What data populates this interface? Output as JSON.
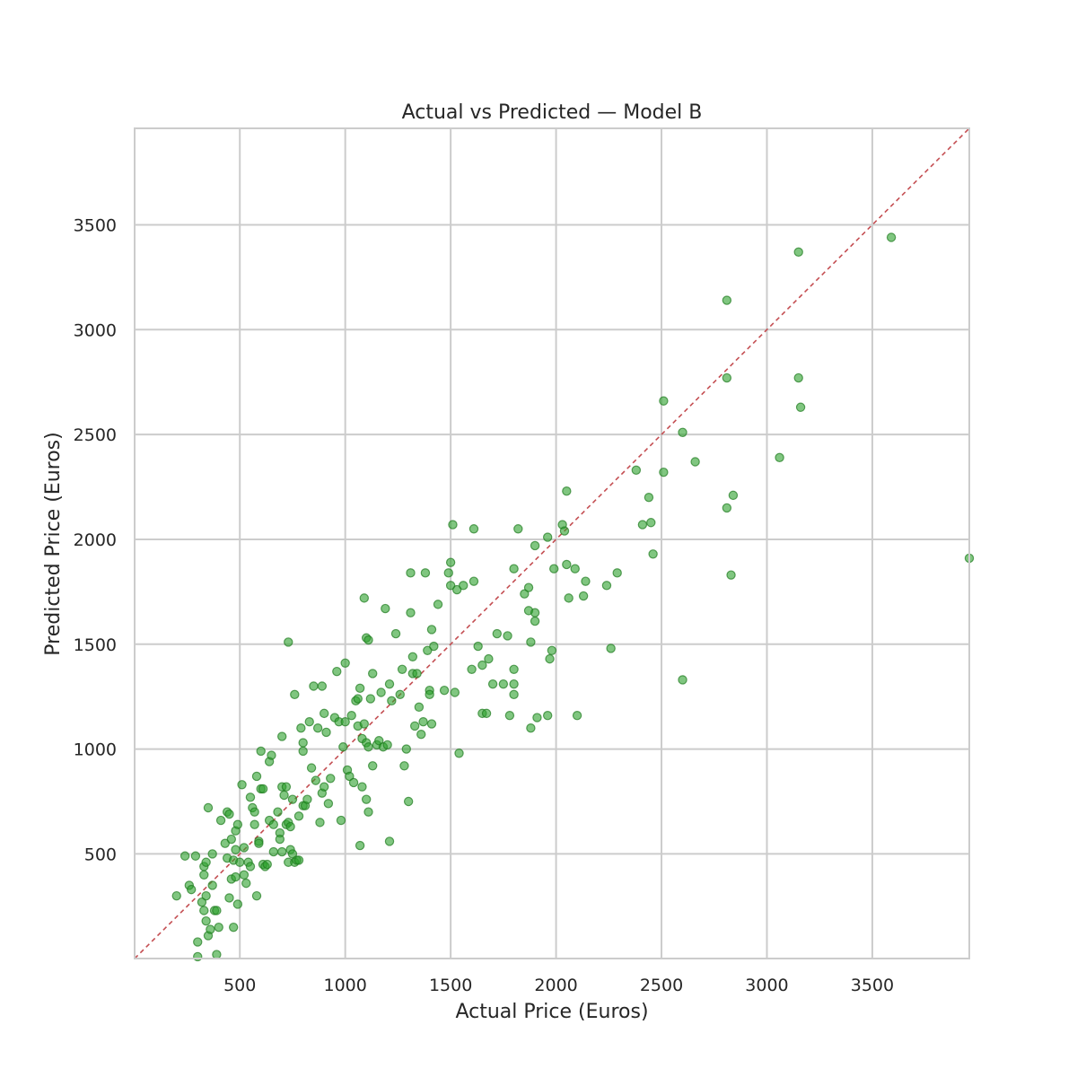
{
  "chart_data": {
    "type": "scatter",
    "title": "Actual vs Predicted — Model B",
    "xlabel": "Actual Price (Euros)",
    "ylabel": "Predicted Price (Euros)",
    "xlim": [
      1,
      3960
    ],
    "ylim": [
      1,
      3960
    ],
    "xticks": [
      500,
      1000,
      1500,
      2000,
      2500,
      3000,
      3500
    ],
    "yticks": [
      500,
      1000,
      1500,
      2000,
      2500,
      3000,
      3500
    ],
    "grid": true,
    "colors": {
      "points": "#2ca02c",
      "reference_line": "#c44e52",
      "grid": "#cccccc",
      "spine": "#cccccc"
    },
    "reference_line": {
      "style": "dashed",
      "from": [
        1,
        1
      ],
      "to": [
        3960,
        3960
      ]
    },
    "points": [
      [
        200,
        300
      ],
      [
        240,
        490
      ],
      [
        260,
        350
      ],
      [
        270,
        330
      ],
      [
        290,
        490
      ],
      [
        300,
        80
      ],
      [
        300,
        10
      ],
      [
        320,
        270
      ],
      [
        330,
        440
      ],
      [
        330,
        230
      ],
      [
        330,
        400
      ],
      [
        340,
        460
      ],
      [
        340,
        300
      ],
      [
        340,
        180
      ],
      [
        350,
        720
      ],
      [
        350,
        110
      ],
      [
        360,
        140
      ],
      [
        370,
        500
      ],
      [
        370,
        350
      ],
      [
        380,
        230
      ],
      [
        390,
        230
      ],
      [
        390,
        20
      ],
      [
        400,
        150
      ],
      [
        410,
        660
      ],
      [
        430,
        550
      ],
      [
        440,
        700
      ],
      [
        440,
        480
      ],
      [
        450,
        290
      ],
      [
        450,
        690
      ],
      [
        460,
        570
      ],
      [
        460,
        380
      ],
      [
        470,
        470
      ],
      [
        470,
        150
      ],
      [
        480,
        610
      ],
      [
        480,
        520
      ],
      [
        480,
        390
      ],
      [
        490,
        640
      ],
      [
        490,
        260
      ],
      [
        500,
        460
      ],
      [
        510,
        830
      ],
      [
        520,
        400
      ],
      [
        520,
        530
      ],
      [
        530,
        360
      ],
      [
        540,
        460
      ],
      [
        550,
        770
      ],
      [
        550,
        440
      ],
      [
        560,
        720
      ],
      [
        570,
        700
      ],
      [
        570,
        640
      ],
      [
        580,
        870
      ],
      [
        580,
        300
      ],
      [
        590,
        560
      ],
      [
        590,
        550
      ],
      [
        600,
        990
      ],
      [
        600,
        810
      ],
      [
        610,
        810
      ],
      [
        610,
        450
      ],
      [
        620,
        440
      ],
      [
        630,
        450
      ],
      [
        640,
        940
      ],
      [
        640,
        660
      ],
      [
        650,
        970
      ],
      [
        660,
        510
      ],
      [
        660,
        640
      ],
      [
        680,
        700
      ],
      [
        690,
        600
      ],
      [
        690,
        570
      ],
      [
        700,
        1060
      ],
      [
        700,
        820
      ],
      [
        700,
        510
      ],
      [
        710,
        780
      ],
      [
        720,
        820
      ],
      [
        720,
        640
      ],
      [
        730,
        1510
      ],
      [
        730,
        650
      ],
      [
        730,
        460
      ],
      [
        740,
        630
      ],
      [
        740,
        520
      ],
      [
        750,
        760
      ],
      [
        750,
        500
      ],
      [
        760,
        1260
      ],
      [
        760,
        460
      ],
      [
        770,
        470
      ],
      [
        780,
        470
      ],
      [
        780,
        680
      ],
      [
        790,
        1100
      ],
      [
        800,
        1030
      ],
      [
        800,
        990
      ],
      [
        800,
        730
      ],
      [
        810,
        730
      ],
      [
        820,
        760
      ],
      [
        830,
        1130
      ],
      [
        840,
        910
      ],
      [
        850,
        1300
      ],
      [
        860,
        850
      ],
      [
        870,
        1100
      ],
      [
        880,
        650
      ],
      [
        890,
        1300
      ],
      [
        890,
        790
      ],
      [
        900,
        1170
      ],
      [
        900,
        820
      ],
      [
        910,
        1080
      ],
      [
        920,
        740
      ],
      [
        930,
        860
      ],
      [
        950,
        1150
      ],
      [
        960,
        1370
      ],
      [
        970,
        1130
      ],
      [
        980,
        660
      ],
      [
        990,
        1010
      ],
      [
        1000,
        1410
      ],
      [
        1000,
        1130
      ],
      [
        1010,
        900
      ],
      [
        1020,
        870
      ],
      [
        1030,
        1160
      ],
      [
        1040,
        840
      ],
      [
        1050,
        1230
      ],
      [
        1060,
        1240
      ],
      [
        1060,
        1110
      ],
      [
        1070,
        1290
      ],
      [
        1070,
        540
      ],
      [
        1080,
        820
      ],
      [
        1080,
        1050
      ],
      [
        1090,
        1720
      ],
      [
        1090,
        1120
      ],
      [
        1100,
        1530
      ],
      [
        1100,
        1030
      ],
      [
        1100,
        760
      ],
      [
        1110,
        1520
      ],
      [
        1110,
        1010
      ],
      [
        1110,
        700
      ],
      [
        1120,
        1240
      ],
      [
        1130,
        1360
      ],
      [
        1130,
        920
      ],
      [
        1150,
        1020
      ],
      [
        1160,
        1040
      ],
      [
        1170,
        1270
      ],
      [
        1180,
        1010
      ],
      [
        1190,
        1670
      ],
      [
        1200,
        1020
      ],
      [
        1210,
        1310
      ],
      [
        1210,
        560
      ],
      [
        1220,
        1230
      ],
      [
        1240,
        1550
      ],
      [
        1260,
        1260
      ],
      [
        1270,
        1380
      ],
      [
        1280,
        920
      ],
      [
        1290,
        1000
      ],
      [
        1300,
        750
      ],
      [
        1310,
        1840
      ],
      [
        1310,
        1650
      ],
      [
        1320,
        1440
      ],
      [
        1320,
        1360
      ],
      [
        1330,
        1110
      ],
      [
        1340,
        1360
      ],
      [
        1350,
        1200
      ],
      [
        1360,
        1070
      ],
      [
        1370,
        1130
      ],
      [
        1380,
        1840
      ],
      [
        1390,
        1470
      ],
      [
        1400,
        1280
      ],
      [
        1400,
        1260
      ],
      [
        1410,
        1570
      ],
      [
        1410,
        1120
      ],
      [
        1420,
        1490
      ],
      [
        1440,
        1690
      ],
      [
        1470,
        1280
      ],
      [
        1490,
        1840
      ],
      [
        1500,
        1890
      ],
      [
        1500,
        1780
      ],
      [
        1510,
        2070
      ],
      [
        1520,
        1270
      ],
      [
        1530,
        1760
      ],
      [
        1540,
        980
      ],
      [
        1560,
        1780
      ],
      [
        1600,
        1380
      ],
      [
        1610,
        2050
      ],
      [
        1610,
        1800
      ],
      [
        1630,
        1490
      ],
      [
        1650,
        1400
      ],
      [
        1650,
        1170
      ],
      [
        1670,
        1170
      ],
      [
        1680,
        1430
      ],
      [
        1700,
        1310
      ],
      [
        1720,
        1550
      ],
      [
        1750,
        1310
      ],
      [
        1770,
        1540
      ],
      [
        1780,
        1160
      ],
      [
        1800,
        1860
      ],
      [
        1800,
        1380
      ],
      [
        1800,
        1310
      ],
      [
        1800,
        1260
      ],
      [
        1820,
        2050
      ],
      [
        1850,
        1740
      ],
      [
        1870,
        1770
      ],
      [
        1870,
        1660
      ],
      [
        1880,
        1510
      ],
      [
        1880,
        1100
      ],
      [
        1900,
        1970
      ],
      [
        1900,
        1610
      ],
      [
        1900,
        1650
      ],
      [
        1910,
        1150
      ],
      [
        1960,
        2010
      ],
      [
        1960,
        1160
      ],
      [
        1970,
        1430
      ],
      [
        1980,
        1470
      ],
      [
        1990,
        1860
      ],
      [
        2030,
        2070
      ],
      [
        2040,
        2040
      ],
      [
        2050,
        2230
      ],
      [
        2050,
        1880
      ],
      [
        2060,
        1720
      ],
      [
        2090,
        1860
      ],
      [
        2100,
        1160
      ],
      [
        2130,
        1730
      ],
      [
        2140,
        1800
      ],
      [
        2240,
        1780
      ],
      [
        2260,
        1480
      ],
      [
        2290,
        1840
      ],
      [
        2380,
        2330
      ],
      [
        2410,
        2070
      ],
      [
        2440,
        2200
      ],
      [
        2450,
        2080
      ],
      [
        2460,
        1930
      ],
      [
        2510,
        2660
      ],
      [
        2510,
        2320
      ],
      [
        2600,
        2510
      ],
      [
        2600,
        1330
      ],
      [
        2660,
        2370
      ],
      [
        2810,
        3140
      ],
      [
        2810,
        2770
      ],
      [
        2810,
        2150
      ],
      [
        2830,
        1830
      ],
      [
        2840,
        2210
      ],
      [
        3060,
        2390
      ],
      [
        3150,
        3370
      ],
      [
        3150,
        2770
      ],
      [
        3160,
        2630
      ],
      [
        3590,
        3440
      ],
      [
        3960,
        1910
      ]
    ]
  }
}
